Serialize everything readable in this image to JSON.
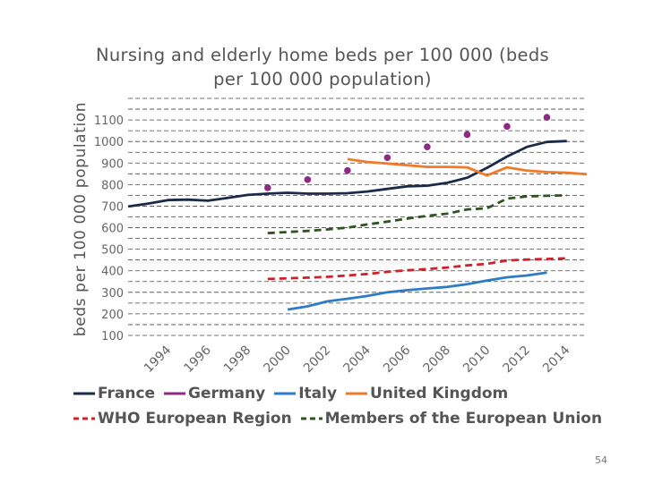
{
  "page": {
    "number": "54"
  },
  "chart_data": {
    "type": "line",
    "title_line1": "Nursing and elderly home beds per 100 000 (beds",
    "title_line2": "per 100 000 population)",
    "xlabel": "",
    "ylabel": "beds per 100 000 population",
    "xlim": [
      1992,
      2015
    ],
    "ylim": [
      100,
      1200
    ],
    "yticks": [
      100,
      200,
      300,
      400,
      500,
      600,
      700,
      800,
      900,
      1000,
      1100
    ],
    "xtick_labels": [
      "1994",
      "1996",
      "1998",
      "2000",
      "2002",
      "2004",
      "2006",
      "2008",
      "2010",
      "2012",
      "2014"
    ],
    "grid": true,
    "legend_position": "bottom",
    "series": [
      {
        "name": "France",
        "color": "#1b2a4a",
        "dash": "solid",
        "marker": "none",
        "x": [
          1992,
          1993,
          1994,
          1995,
          1996,
          1997,
          1998,
          1999,
          2000,
          2001,
          2002,
          2003,
          2004,
          2005,
          2006,
          2007,
          2008,
          2009,
          2010,
          2011,
          2012,
          2013,
          2014
        ],
        "y": [
          698,
          712,
          728,
          730,
          725,
          738,
          752,
          758,
          762,
          758,
          758,
          760,
          768,
          780,
          792,
          795,
          808,
          832,
          878,
          930,
          975,
          998,
          1002
        ]
      },
      {
        "name": "Germany",
        "color": "#8e2a86",
        "dash": "none",
        "marker": "dot",
        "x": [
          1999,
          2001,
          2003,
          2005,
          2007,
          2009,
          2011,
          2013
        ],
        "y": [
          785,
          823,
          865,
          925,
          975,
          1032,
          1070,
          1112
        ]
      },
      {
        "name": "Italy",
        "color": "#2e7cc6",
        "dash": "solid",
        "marker": "none",
        "x": [
          2000,
          2001,
          2002,
          2003,
          2004,
          2005,
          2006,
          2007,
          2008,
          2009,
          2010,
          2011,
          2012,
          2013
        ],
        "y": [
          220,
          235,
          258,
          270,
          283,
          300,
          310,
          318,
          325,
          338,
          355,
          370,
          378,
          392
        ]
      },
      {
        "name": "United Kingdom",
        "color": "#f07a2a",
        "dash": "solid",
        "marker": "none",
        "x": [
          2003,
          2004,
          2005,
          2006,
          2007,
          2008,
          2009,
          2010,
          2011,
          2012,
          2013,
          2014,
          2015
        ],
        "y": [
          918,
          905,
          898,
          890,
          882,
          882,
          880,
          842,
          880,
          865,
          858,
          855,
          848
        ]
      },
      {
        "name": "WHO European Region",
        "color": "#d0202a",
        "dash": "dashed",
        "marker": "none",
        "x": [
          1999,
          2000,
          2001,
          2002,
          2003,
          2004,
          2005,
          2006,
          2007,
          2008,
          2009,
          2010,
          2011,
          2012,
          2013,
          2014
        ],
        "y": [
          362,
          365,
          368,
          372,
          378,
          385,
          395,
          402,
          408,
          415,
          425,
          432,
          448,
          452,
          455,
          458
        ]
      },
      {
        "name": "Members of the European Union",
        "color": "#2f5420",
        "dash": "dashed",
        "marker": "none",
        "x": [
          1999,
          2000,
          2001,
          2002,
          2003,
          2004,
          2005,
          2006,
          2007,
          2008,
          2009,
          2010,
          2011,
          2012,
          2013,
          2014
        ],
        "y": [
          575,
          580,
          585,
          592,
          600,
          615,
          628,
          642,
          655,
          665,
          685,
          690,
          735,
          745,
          748,
          750
        ]
      }
    ]
  }
}
